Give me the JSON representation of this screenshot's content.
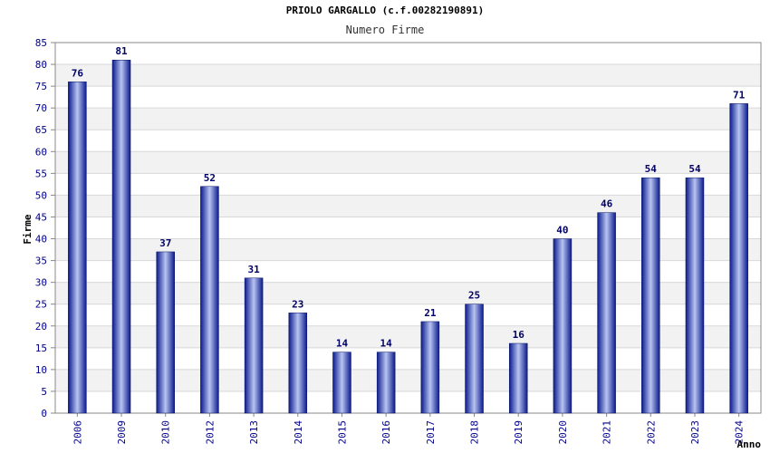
{
  "chart_data": {
    "type": "bar",
    "title": "PRIOLO GARGALLO (c.f.00282190891)",
    "subtitle": "Numero Firme",
    "xlabel": "Anno",
    "ylabel": "Firme",
    "categories": [
      "2006",
      "2009",
      "2010",
      "2012",
      "2013",
      "2014",
      "2015",
      "2016",
      "2017",
      "2018",
      "2019",
      "2020",
      "2021",
      "2022",
      "2023",
      "2024"
    ],
    "values": [
      76,
      81,
      37,
      52,
      31,
      23,
      14,
      14,
      21,
      25,
      16,
      40,
      46,
      54,
      54,
      71
    ],
    "ylim": [
      0,
      85
    ],
    "ytick_step": 5,
    "grid": true,
    "legend": "none",
    "colors": {
      "bar_dark": "#0a1a8c",
      "bar_light": "#b8c4f2",
      "band": "#f2f2f2",
      "grid": "#d8d8d8",
      "axis": "#888888",
      "tick_label": "#00008b",
      "value_label": "#000066"
    }
  }
}
